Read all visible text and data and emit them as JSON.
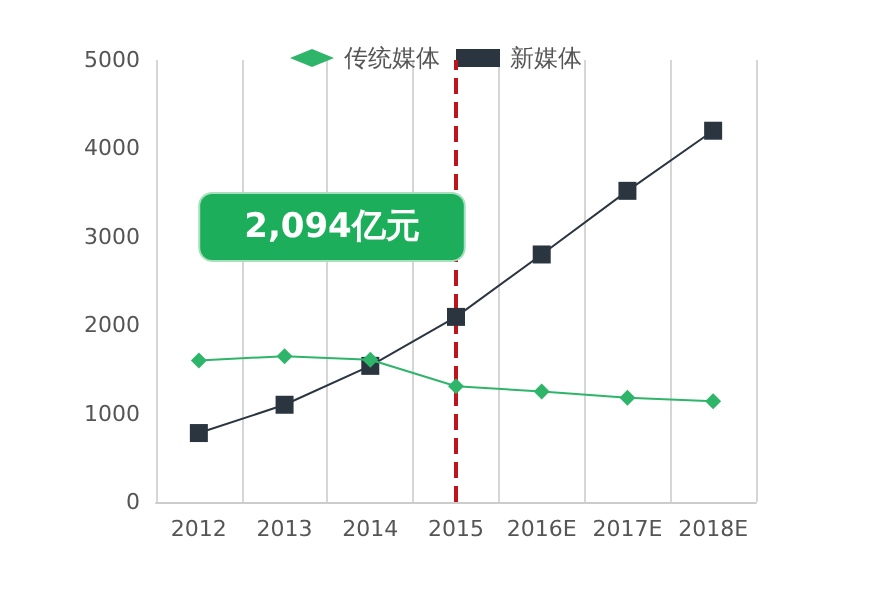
{
  "chart_data": {
    "type": "line",
    "categories": [
      "2012",
      "2013",
      "2014",
      "2015",
      "2016E",
      "2017E",
      "2018E"
    ],
    "series": [
      {
        "name": "传统媒体",
        "color": "#2fb56a",
        "marker": "diamond",
        "values": [
          1600,
          1650,
          1610,
          1310,
          1250,
          1180,
          1140
        ]
      },
      {
        "name": "新媒体",
        "color": "#2b3540",
        "marker": "square",
        "values": [
          780,
          1100,
          1540,
          2094,
          2800,
          3520,
          4200
        ]
      }
    ],
    "ylim": [
      0,
      5000
    ],
    "yticks": [
      0,
      1000,
      2000,
      3000,
      4000,
      5000
    ],
    "grid": "x",
    "legend": "top",
    "annotations": [
      {
        "text": "2,094亿元",
        "x": "2015",
        "y": 2094
      }
    ],
    "ref_lines": [
      {
        "axis": "x",
        "value": "2015",
        "color": "#c0141c",
        "line_style": "dashed"
      }
    ]
  }
}
